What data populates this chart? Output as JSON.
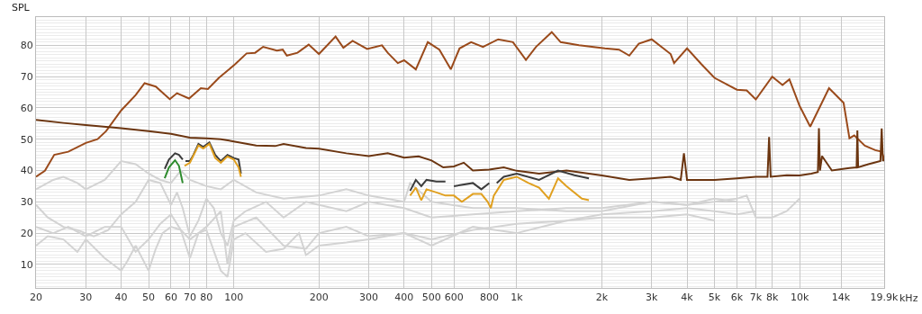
{
  "chart_data": {
    "type": "line",
    "ylabel": "SPL",
    "log": "x",
    "grid": true,
    "marker": "none",
    "line_style": "solid",
    "xlim": [
      20,
      19900
    ],
    "ylim": [
      2.5,
      89
    ],
    "xticks": [
      20,
      30,
      40,
      50,
      60,
      70,
      80,
      100,
      200,
      300,
      400,
      500,
      600,
      800,
      {
        "value": 1000,
        "label": "1k"
      },
      {
        "value": 2000,
        "label": "2k"
      },
      {
        "value": 3000,
        "label": "3k"
      },
      {
        "value": 4000,
        "label": "4k"
      },
      {
        "value": 5000,
        "label": "5k"
      },
      {
        "value": 6000,
        "label": "6k"
      },
      {
        "value": 7000,
        "label": "7k"
      },
      {
        "value": 8000,
        "label": "8k"
      },
      {
        "value": 10000,
        "label": "10k"
      },
      {
        "value": 14000,
        "label": "14k"
      },
      {
        "value": 19900,
        "label": "19.9k"
      }
    ],
    "xlabel": "kHz",
    "yticks": [
      10,
      20,
      30,
      40,
      50,
      60,
      70,
      80
    ],
    "series": [
      {
        "color": "#d3d3d3",
        "x": [
          20,
          23,
          25,
          28,
          30,
          35,
          40,
          45,
          50,
          55,
          60,
          65,
          70,
          80,
          90,
          100,
          120,
          150,
          200,
          250,
          300,
          400,
          420,
          500,
          700,
          1000,
          1500,
          2000,
          3000,
          4000,
          5000,
          6000,
          6500,
          7000,
          8000,
          9000,
          10000
        ],
        "values": [
          34,
          37,
          38,
          36,
          34,
          37,
          43,
          42,
          39,
          37,
          36,
          40,
          37,
          35,
          34,
          37,
          33,
          31,
          32,
          34,
          32,
          30,
          36,
          30,
          28,
          28,
          27,
          27,
          30,
          29,
          30,
          31,
          32,
          25,
          25,
          27,
          31
        ]
      },
      {
        "color": "#d3d3d3",
        "x": [
          20,
          22,
          25,
          28,
          32,
          36,
          40,
          45,
          50,
          55,
          60,
          63,
          66,
          70,
          75,
          80,
          85,
          90,
          95,
          100,
          110,
          130,
          150,
          180,
          200,
          250,
          300,
          400,
          500,
          700,
          1000,
          1500,
          2000,
          3000,
          4000,
          5000,
          6000
        ],
        "values": [
          29,
          25,
          22,
          21,
          19,
          21,
          26,
          30,
          37,
          36,
          29,
          33,
          28,
          19,
          24,
          31,
          28,
          20,
          16,
          24,
          27,
          30,
          25,
          30,
          29,
          27,
          30,
          28,
          25,
          26,
          27,
          28,
          28,
          30,
          29,
          31,
          30
        ]
      },
      {
        "color": "#d3d3d3",
        "x": [
          20,
          23,
          26,
          30,
          35,
          40,
          45,
          50,
          55,
          60,
          65,
          70,
          75,
          80,
          90,
          95,
          100,
          120,
          150,
          180,
          200,
          250,
          300,
          400,
          500,
          700,
          1000,
          1500,
          2000,
          3000,
          4000,
          5000,
          6000,
          7000
        ],
        "values": [
          22,
          20,
          22,
          19,
          22,
          22,
          14,
          18,
          23,
          26,
          21,
          12,
          20,
          22,
          27,
          10,
          22,
          25,
          16,
          15,
          20,
          22,
          19,
          20,
          16,
          22,
          20,
          24,
          26,
          27,
          28,
          27,
          26,
          27
        ]
      },
      {
        "color": "#d3d3d3",
        "x": [
          20,
          22,
          25,
          28,
          30,
          35,
          40,
          42,
          45,
          50,
          53,
          56,
          60,
          65,
          70,
          75,
          80,
          90,
          95,
          100,
          110,
          130,
          150,
          170,
          180,
          200,
          250,
          300,
          400,
          500,
          700,
          1000,
          1500,
          2000,
          3000,
          4000,
          5000
        ],
        "values": [
          16,
          19,
          18,
          14,
          18,
          12,
          8,
          11,
          16,
          8,
          15,
          20,
          22,
          21,
          18,
          20,
          21,
          8,
          6,
          18,
          20,
          14,
          15,
          20,
          13,
          16,
          17,
          18,
          20,
          18,
          21,
          23,
          24,
          25,
          25,
          26,
          24
        ]
      },
      {
        "color": "#9a4a1b",
        "x": [
          20,
          21.5,
          23.2,
          26,
          30,
          33,
          35.4,
          40,
          45,
          48.4,
          53,
          59.4,
          63,
          69.5,
          76.5,
          81,
          88.6,
          101,
          111,
          119,
          127,
          142,
          149,
          154,
          168,
          184,
          200,
          229,
          244,
          263,
          296,
          334,
          350,
          380,
          400,
          440,
          485,
          533,
          585,
          628,
          690,
          760,
          860,
          970,
          1078,
          1170,
          1330,
          1430,
          1660,
          2050,
          2300,
          2500,
          2700,
          3000,
          3500,
          3600,
          4000,
          4500,
          5000,
          6000,
          6500,
          7000,
          8000,
          8700,
          9200,
          10000,
          10900,
          12700,
          14300,
          15000,
          15600,
          17000,
          18500,
          19500,
          19900
        ],
        "values": [
          38,
          39.9,
          45,
          46,
          48.8,
          50,
          52.6,
          59.2,
          64.1,
          67.9,
          66.8,
          62.8,
          64.7,
          63,
          66.3,
          66,
          69.6,
          73.9,
          77.4,
          77.6,
          79.5,
          78.3,
          78.6,
          76.7,
          77.6,
          80.2,
          77.2,
          82.8,
          79.2,
          81.4,
          78.8,
          80,
          77.6,
          74.3,
          75.2,
          72.3,
          81,
          78.6,
          72.3,
          79,
          81,
          79.5,
          81.9,
          81,
          75.3,
          79.5,
          84.2,
          81,
          80,
          79,
          78.6,
          76.7,
          80.5,
          81.9,
          77.2,
          74.3,
          79,
          73.9,
          69.6,
          65.8,
          65.6,
          62.7,
          70,
          67.3,
          69.1,
          60.6,
          54,
          66.3,
          61.6,
          50.3,
          51.2,
          47.9,
          46.5,
          46,
          43.6
        ]
      },
      {
        "color": "#6b3510",
        "x": [
          20,
          25,
          30,
          40,
          50,
          60,
          70,
          80,
          90,
          100,
          120,
          140,
          150,
          180,
          200,
          250,
          300,
          350,
          400,
          450,
          500,
          550,
          600,
          650,
          700,
          800,
          900,
          1000,
          1200,
          1500,
          2000,
          2500,
          3000,
          3500,
          3800,
          3900,
          4000,
          5000,
          6000,
          7000,
          7700,
          7800,
          7900,
          9000,
          10000,
          11000,
          11600,
          11700,
          11800,
          12000,
          13000,
          15000,
          15900,
          16000,
          16100,
          17500,
          19300,
          19500,
          19700,
          19900
        ],
        "values": [
          56.2,
          55.2,
          54.5,
          53.5,
          52.6,
          51.7,
          50.5,
          50.3,
          50,
          49.3,
          48,
          47.8,
          48.5,
          47.2,
          47,
          45.5,
          44.6,
          45.5,
          44.1,
          44.5,
          43.2,
          41,
          41.3,
          42.5,
          40,
          40.3,
          41,
          39.9,
          39,
          40,
          38.4,
          37,
          37.5,
          38,
          37,
          45.5,
          37,
          37,
          37.5,
          38,
          38,
          50.7,
          38,
          38.5,
          38.4,
          39,
          39.5,
          53.5,
          40,
          44.6,
          40,
          40.8,
          41,
          52.8,
          41,
          42,
          43,
          53.4,
          43,
          43.6
        ]
      },
      {
        "color": "#3c3c3c",
        "x": [
          57,
          59,
          62,
          64,
          66,
          67,
          67.5,
          70,
          72,
          75,
          78,
          82,
          86,
          90,
          95,
          100,
          104,
          106,
          107,
          420,
          440,
          460,
          480,
          520,
          560,
          570,
          600,
          700,
          750,
          800,
          810,
          850,
          900,
          1000,
          1200,
          1400,
          1600,
          1800
        ],
        "values": [
          40.5,
          43.5,
          45.5,
          45,
          43.5,
          null,
          43,
          43,
          45,
          48.5,
          47.5,
          49,
          45,
          43,
          45,
          44,
          43.5,
          39,
          null,
          33.5,
          37,
          35,
          37,
          36.5,
          36.5,
          null,
          35,
          36,
          34,
          36,
          null,
          36,
          38,
          39,
          37,
          40,
          38.5,
          37.5
        ]
      },
      {
        "color": "#2e8b2e",
        "x": [
          57,
          59,
          62,
          64,
          66
        ],
        "values": [
          37.5,
          41,
          43.3,
          41.5,
          36
        ]
      },
      {
        "color": "#e0a020",
        "x": [
          67,
          70,
          75,
          78,
          82,
          86,
          90,
          95,
          100,
          104,
          106,
          107,
          420,
          440,
          460,
          480,
          520,
          560,
          600,
          640,
          700,
          750,
          790,
          810,
          830,
          900,
          1000,
          1100,
          1200,
          1300,
          1400,
          1500,
          1700,
          1800
        ],
        "values": [
          41.5,
          42.5,
          48,
          47,
          48.5,
          44,
          42.5,
          44.5,
          43.5,
          41,
          38,
          null,
          32,
          34.5,
          30.5,
          34,
          33,
          32,
          32,
          30,
          32.5,
          32.5,
          30,
          28,
          32,
          37,
          38,
          36,
          34.5,
          31,
          37.5,
          35,
          31,
          30.5
        ]
      }
    ]
  }
}
